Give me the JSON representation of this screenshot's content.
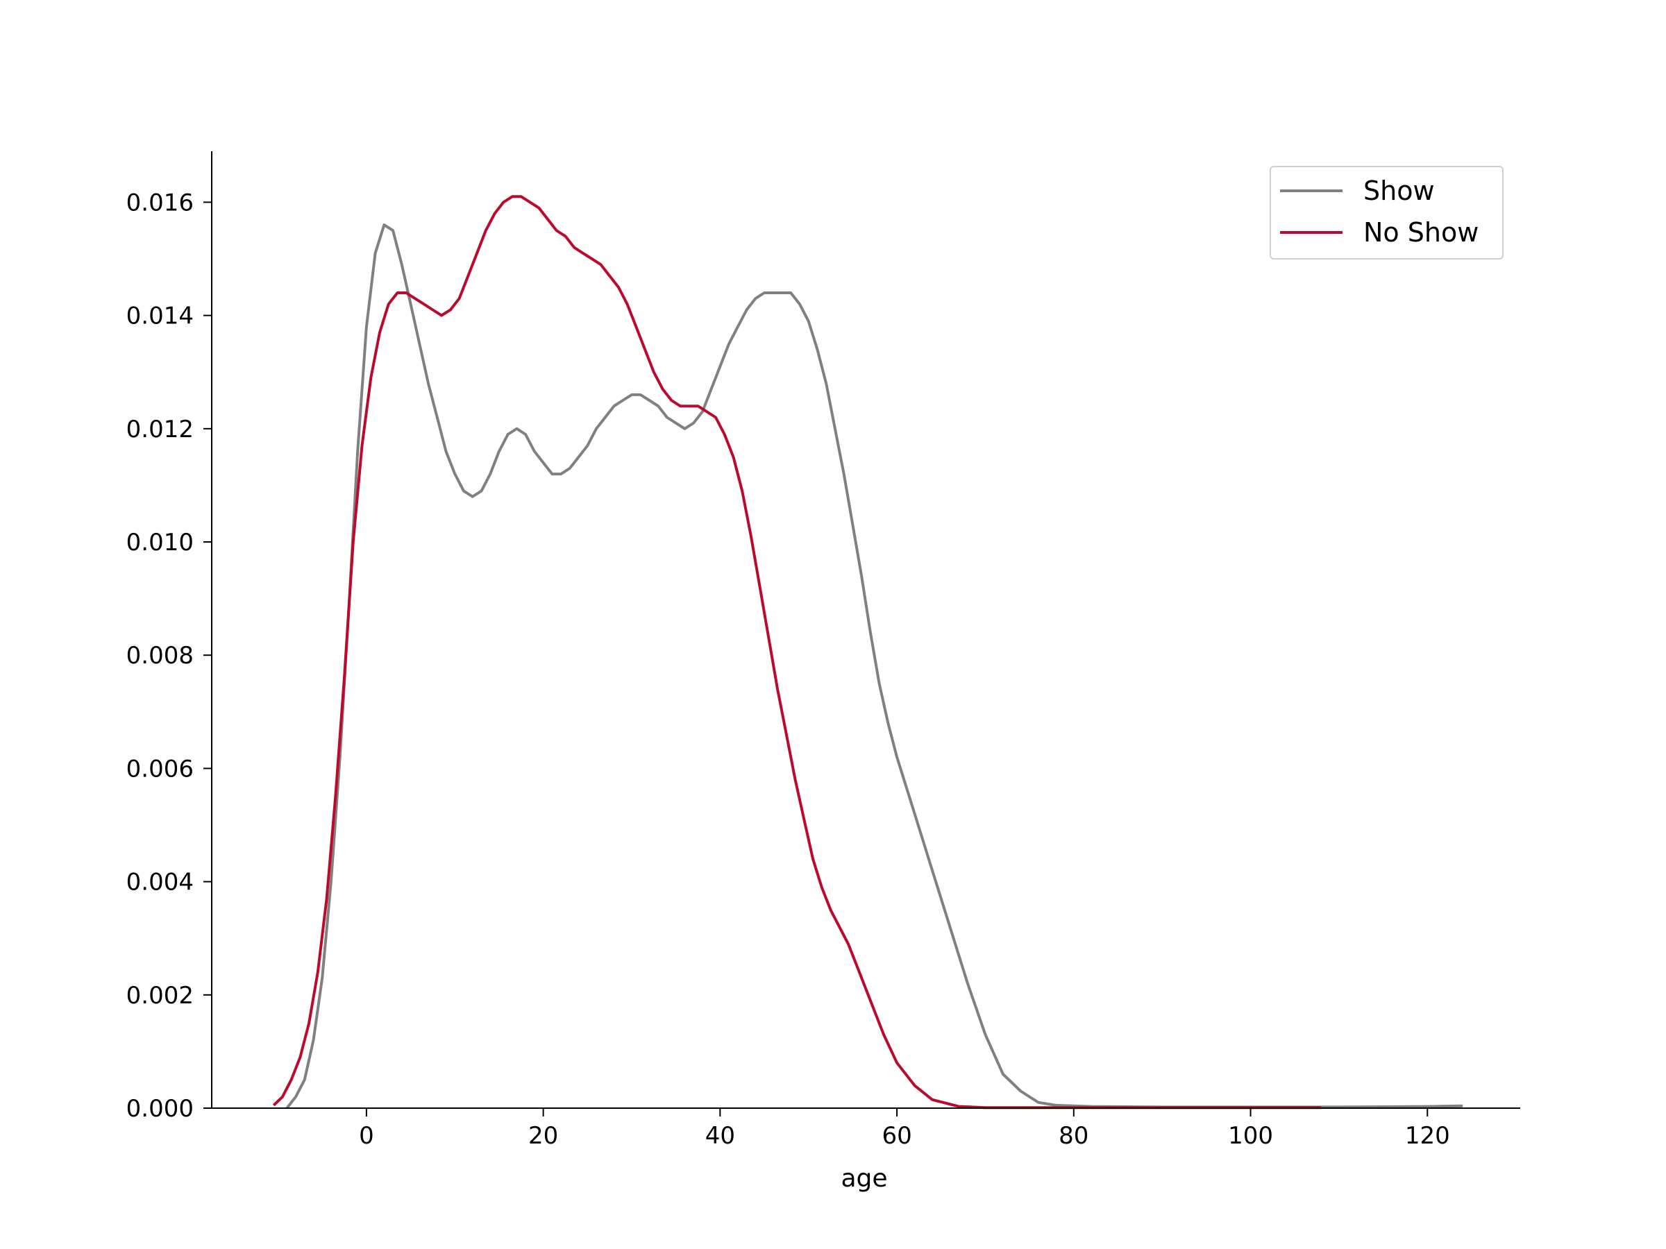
{
  "chart_data": {
    "type": "line",
    "title": "",
    "xlabel": "age",
    "ylabel": "",
    "xlim": [
      -17.5,
      130.5
    ],
    "ylim": [
      0,
      0.0169
    ],
    "x_ticks": [
      0,
      20,
      40,
      60,
      80,
      100,
      120
    ],
    "y_ticks": [
      0.0,
      0.002,
      0.004,
      0.006,
      0.008,
      0.01,
      0.012,
      0.014,
      0.016
    ],
    "x_tick_labels": [
      "0",
      "20",
      "40",
      "60",
      "80",
      "100",
      "120"
    ],
    "y_tick_labels": [
      "0.000",
      "0.002",
      "0.004",
      "0.006",
      "0.008",
      "0.010",
      "0.012",
      "0.014",
      "0.016"
    ],
    "grid": false,
    "legend_position": "top-right",
    "series": [
      {
        "name": "Show",
        "color": "#808080",
        "points": [
          [
            -9,
            0.0
          ],
          [
            -8,
            0.0002
          ],
          [
            -7,
            0.0005
          ],
          [
            -6,
            0.0012
          ],
          [
            -5,
            0.0023
          ],
          [
            -4,
            0.004
          ],
          [
            -3,
            0.0062
          ],
          [
            -2,
            0.0088
          ],
          [
            -1,
            0.0116
          ],
          [
            0,
            0.0138
          ],
          [
            1,
            0.0151
          ],
          [
            2,
            0.0156
          ],
          [
            3,
            0.0155
          ],
          [
            4,
            0.0149
          ],
          [
            5,
            0.0142
          ],
          [
            6,
            0.0135
          ],
          [
            7,
            0.0128
          ],
          [
            8,
            0.0122
          ],
          [
            9,
            0.0116
          ],
          [
            10,
            0.0112
          ],
          [
            11,
            0.0109
          ],
          [
            12,
            0.0108
          ],
          [
            13,
            0.0109
          ],
          [
            14,
            0.0112
          ],
          [
            15,
            0.0116
          ],
          [
            16,
            0.0119
          ],
          [
            17,
            0.012
          ],
          [
            18,
            0.0119
          ],
          [
            19,
            0.0116
          ],
          [
            20,
            0.0114
          ],
          [
            21,
            0.0112
          ],
          [
            22,
            0.0112
          ],
          [
            23,
            0.0113
          ],
          [
            24,
            0.0115
          ],
          [
            25,
            0.0117
          ],
          [
            26,
            0.012
          ],
          [
            27,
            0.0122
          ],
          [
            28,
            0.0124
          ],
          [
            29,
            0.0125
          ],
          [
            30,
            0.0126
          ],
          [
            31,
            0.0126
          ],
          [
            32,
            0.0125
          ],
          [
            33,
            0.0124
          ],
          [
            34,
            0.0122
          ],
          [
            35,
            0.0121
          ],
          [
            36,
            0.012
          ],
          [
            37,
            0.0121
          ],
          [
            38,
            0.0123
          ],
          [
            39,
            0.0127
          ],
          [
            40,
            0.0131
          ],
          [
            41,
            0.0135
          ],
          [
            42,
            0.0138
          ],
          [
            43,
            0.0141
          ],
          [
            44,
            0.0143
          ],
          [
            45,
            0.0144
          ],
          [
            46,
            0.0144
          ],
          [
            47,
            0.0144
          ],
          [
            48,
            0.0144
          ],
          [
            49,
            0.0142
          ],
          [
            50,
            0.0139
          ],
          [
            51,
            0.0134
          ],
          [
            52,
            0.0128
          ],
          [
            53,
            0.012
          ],
          [
            54,
            0.0112
          ],
          [
            55,
            0.0103
          ],
          [
            56,
            0.0094
          ],
          [
            57,
            0.0084
          ],
          [
            58,
            0.0075
          ],
          [
            59,
            0.0068
          ],
          [
            60,
            0.0062
          ],
          [
            62,
            0.0052
          ],
          [
            64,
            0.0042
          ],
          [
            66,
            0.0032
          ],
          [
            68,
            0.0022
          ],
          [
            70,
            0.0013
          ],
          [
            72,
            0.0006
          ],
          [
            74,
            0.0003
          ],
          [
            76,
            0.0001
          ],
          [
            78,
            5e-05
          ],
          [
            82,
            3e-05
          ],
          [
            90,
            2e-05
          ],
          [
            100,
            2e-05
          ],
          [
            110,
            2e-05
          ],
          [
            120,
            3e-05
          ],
          [
            124,
            4e-05
          ]
        ]
      },
      {
        "name": "No Show",
        "color": "#bb0a2d",
        "points": [
          [
            -10.5,
            5e-05
          ],
          [
            -9.5,
            0.0002
          ],
          [
            -8.5,
            0.0005
          ],
          [
            -7.5,
            0.0009
          ],
          [
            -6.5,
            0.0015
          ],
          [
            -5.5,
            0.0024
          ],
          [
            -4.5,
            0.0037
          ],
          [
            -3.5,
            0.0055
          ],
          [
            -2.5,
            0.0076
          ],
          [
            -1.5,
            0.01
          ],
          [
            -0.5,
            0.0117
          ],
          [
            0.5,
            0.0129
          ],
          [
            1.5,
            0.0137
          ],
          [
            2.5,
            0.0142
          ],
          [
            3.5,
            0.0144
          ],
          [
            4.5,
            0.0144
          ],
          [
            5.5,
            0.0143
          ],
          [
            6.5,
            0.0142
          ],
          [
            7.5,
            0.0141
          ],
          [
            8.5,
            0.014
          ],
          [
            9.5,
            0.0141
          ],
          [
            10.5,
            0.0143
          ],
          [
            11.5,
            0.0147
          ],
          [
            12.5,
            0.0151
          ],
          [
            13.5,
            0.0155
          ],
          [
            14.5,
            0.0158
          ],
          [
            15.5,
            0.016
          ],
          [
            16.5,
            0.0161
          ],
          [
            17.5,
            0.0161
          ],
          [
            18.5,
            0.016
          ],
          [
            19.5,
            0.0159
          ],
          [
            20.5,
            0.0157
          ],
          [
            21.5,
            0.0155
          ],
          [
            22.5,
            0.0154
          ],
          [
            23.5,
            0.0152
          ],
          [
            24.5,
            0.0151
          ],
          [
            25.5,
            0.015
          ],
          [
            26.5,
            0.0149
          ],
          [
            27.5,
            0.0147
          ],
          [
            28.5,
            0.0145
          ],
          [
            29.5,
            0.0142
          ],
          [
            30.5,
            0.0138
          ],
          [
            31.5,
            0.0134
          ],
          [
            32.5,
            0.013
          ],
          [
            33.5,
            0.0127
          ],
          [
            34.5,
            0.0125
          ],
          [
            35.5,
            0.0124
          ],
          [
            36.5,
            0.0124
          ],
          [
            37.5,
            0.0124
          ],
          [
            38.5,
            0.0123
          ],
          [
            39.5,
            0.0122
          ],
          [
            40.5,
            0.0119
          ],
          [
            41.5,
            0.0115
          ],
          [
            42.5,
            0.0109
          ],
          [
            43.5,
            0.0101
          ],
          [
            44.5,
            0.0092
          ],
          [
            45.5,
            0.0083
          ],
          [
            46.5,
            0.0074
          ],
          [
            47.5,
            0.0066
          ],
          [
            48.5,
            0.0058
          ],
          [
            49.5,
            0.0051
          ],
          [
            50.5,
            0.0044
          ],
          [
            51.5,
            0.0039
          ],
          [
            52.5,
            0.0035
          ],
          [
            53.5,
            0.0032
          ],
          [
            54.5,
            0.0029
          ],
          [
            55.5,
            0.0025
          ],
          [
            57,
            0.0019
          ],
          [
            58.5,
            0.0013
          ],
          [
            60,
            0.0008
          ],
          [
            62,
            0.0004
          ],
          [
            64,
            0.00015
          ],
          [
            67,
            3e-05
          ],
          [
            70,
            1e-05
          ],
          [
            108,
            1e-05
          ]
        ]
      }
    ]
  }
}
